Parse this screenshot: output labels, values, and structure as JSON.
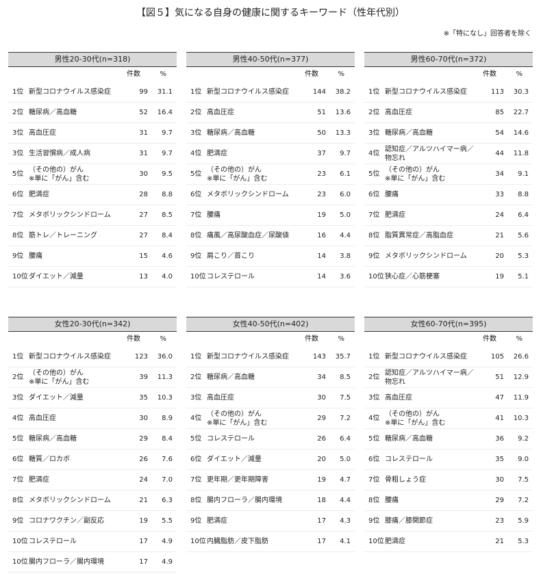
{
  "title": "【図５】気になる自身の健康に関するキーワード（性年代別）",
  "note": "※「特になし」回答者を除く",
  "tables": [
    {
      "header": "男性20-30代(n=318)",
      "columns": [
        "件数",
        "%"
      ],
      "rows": [
        {
          "rank": "1位",
          "name": [
            "新型コロナウイルス感染症"
          ],
          "count": "99",
          "pct": "31.1"
        },
        {
          "rank": "2位",
          "name": [
            "糖尿病／高血糖"
          ],
          "count": "52",
          "pct": "16.4"
        },
        {
          "rank": "3位",
          "name": [
            "高血圧症"
          ],
          "count": "31",
          "pct": "9.7"
        },
        {
          "rank": "3位",
          "name": [
            "生活習慣病／成人病"
          ],
          "count": "31",
          "pct": "9.7"
        },
        {
          "rank": "5位",
          "name": [
            "（その他の）がん",
            "※単に「がん」含む"
          ],
          "count": "30",
          "pct": "9.5"
        },
        {
          "rank": "6位",
          "name": [
            "肥満症"
          ],
          "count": "28",
          "pct": "8.8"
        },
        {
          "rank": "7位",
          "name": [
            "メタボリックシンドローム"
          ],
          "count": "27",
          "pct": "8.5"
        },
        {
          "rank": "8位",
          "name": [
            "筋トレ／トレーニング"
          ],
          "count": "27",
          "pct": "8.4"
        },
        {
          "rank": "9位",
          "name": [
            "腰痛"
          ],
          "count": "15",
          "pct": "4.6"
        },
        {
          "rank": "10位",
          "name": [
            "ダイエット／減量"
          ],
          "count": "13",
          "pct": "4.0"
        }
      ]
    },
    {
      "header": "男性40-50代(n=377)",
      "columns": [
        "件数",
        "%"
      ],
      "rows": [
        {
          "rank": "1位",
          "name": [
            "新型コロナウイルス感染症"
          ],
          "count": "144",
          "pct": "38.2"
        },
        {
          "rank": "2位",
          "name": [
            "高血圧症"
          ],
          "count": "51",
          "pct": "13.6"
        },
        {
          "rank": "3位",
          "name": [
            "糖尿病／高血糖"
          ],
          "count": "50",
          "pct": "13.3"
        },
        {
          "rank": "4位",
          "name": [
            "肥満症"
          ],
          "count": "37",
          "pct": "9.7"
        },
        {
          "rank": "5位",
          "name": [
            "（その他の）がん",
            "※単に「がん」含む"
          ],
          "count": "23",
          "pct": "6.1"
        },
        {
          "rank": "6位",
          "name": [
            "メタボリックシンドローム"
          ],
          "count": "23",
          "pct": "6.0"
        },
        {
          "rank": "7位",
          "name": [
            "腰痛"
          ],
          "count": "19",
          "pct": "5.0"
        },
        {
          "rank": "8位",
          "name": [
            "痛風／高尿酸血症／尿酸値"
          ],
          "count": "16",
          "pct": "4.4"
        },
        {
          "rank": "9位",
          "name": [
            "肩こり／首こり"
          ],
          "count": "14",
          "pct": "3.8"
        },
        {
          "rank": "10位",
          "name": [
            "コレステロール"
          ],
          "count": "14",
          "pct": "3.6"
        }
      ]
    },
    {
      "header": "男性60-70代(n=372)",
      "columns": [
        "件数",
        "%"
      ],
      "rows": [
        {
          "rank": "1位",
          "name": [
            "新型コロナウイルス感染症"
          ],
          "count": "113",
          "pct": "30.3"
        },
        {
          "rank": "2位",
          "name": [
            "高血圧症"
          ],
          "count": "85",
          "pct": "22.7"
        },
        {
          "rank": "3位",
          "name": [
            "糖尿病／高血糖"
          ],
          "count": "54",
          "pct": "14.6"
        },
        {
          "rank": "4位",
          "name": [
            "認知症／アルツハイマー病／",
            "物忘れ"
          ],
          "count": "44",
          "pct": "11.8"
        },
        {
          "rank": "5位",
          "name": [
            "（その他の）がん",
            "※単に「がん」含む"
          ],
          "count": "34",
          "pct": "9.1"
        },
        {
          "rank": "6位",
          "name": [
            "腰痛"
          ],
          "count": "33",
          "pct": "8.8"
        },
        {
          "rank": "7位",
          "name": [
            "肥満症"
          ],
          "count": "24",
          "pct": "6.4"
        },
        {
          "rank": "8位",
          "name": [
            "脂質異常症／高脂血症"
          ],
          "count": "21",
          "pct": "5.6"
        },
        {
          "rank": "9位",
          "name": [
            "メタボリックシンドローム"
          ],
          "count": "20",
          "pct": "5.3"
        },
        {
          "rank": "10位",
          "name": [
            "狭心症／心筋梗塞"
          ],
          "count": "19",
          "pct": "5.1"
        }
      ]
    },
    {
      "header": "女性20-30代(n=342)",
      "columns": [
        "件数",
        "%"
      ],
      "rows": [
        {
          "rank": "1位",
          "name": [
            "新型コロナウイルス感染症"
          ],
          "count": "123",
          "pct": "36.0"
        },
        {
          "rank": "2位",
          "name": [
            "（その他の）がん",
            "※単に「がん」含む"
          ],
          "count": "39",
          "pct": "11.3"
        },
        {
          "rank": "3位",
          "name": [
            "ダイエット／減量"
          ],
          "count": "35",
          "pct": "10.3"
        },
        {
          "rank": "4位",
          "name": [
            "高血圧症"
          ],
          "count": "30",
          "pct": "8.9"
        },
        {
          "rank": "5位",
          "name": [
            "糖尿病／高血糖"
          ],
          "count": "29",
          "pct": "8.4"
        },
        {
          "rank": "6位",
          "name": [
            "糖質／ロカボ"
          ],
          "count": "26",
          "pct": "7.6"
        },
        {
          "rank": "7位",
          "name": [
            "肥満症"
          ],
          "count": "24",
          "pct": "7.0"
        },
        {
          "rank": "8位",
          "name": [
            "メタボリックシンドローム"
          ],
          "count": "21",
          "pct": "6.3"
        },
        {
          "rank": "9位",
          "name": [
            "コロナワクチン／副反応"
          ],
          "count": "19",
          "pct": "5.5"
        },
        {
          "rank": "10位",
          "name": [
            "コレステロール"
          ],
          "count": "17",
          "pct": "4.9"
        },
        {
          "rank": "10位",
          "name": [
            "腸内フローラ／腸内環境"
          ],
          "count": "17",
          "pct": "4.9"
        }
      ]
    },
    {
      "header": "女性40-50代(n=402)",
      "columns": [
        "件数",
        "%"
      ],
      "rows": [
        {
          "rank": "1位",
          "name": [
            "新型コロナウイルス感染症"
          ],
          "count": "143",
          "pct": "35.7"
        },
        {
          "rank": "2位",
          "name": [
            "糖尿病／高血糖"
          ],
          "count": "34",
          "pct": "8.5"
        },
        {
          "rank": "3位",
          "name": [
            "高血圧症"
          ],
          "count": "30",
          "pct": "7.5"
        },
        {
          "rank": "4位",
          "name": [
            "（その他の）がん",
            "※単に「がん」含む"
          ],
          "count": "29",
          "pct": "7.2"
        },
        {
          "rank": "5位",
          "name": [
            "コレステロール"
          ],
          "count": "26",
          "pct": "6.4"
        },
        {
          "rank": "6位",
          "name": [
            "ダイエット／減量"
          ],
          "count": "20",
          "pct": "5.0"
        },
        {
          "rank": "7位",
          "name": [
            "更年期／更年期障害"
          ],
          "count": "19",
          "pct": "4.7"
        },
        {
          "rank": "8位",
          "name": [
            "腸内フローラ／腸内環境"
          ],
          "count": "18",
          "pct": "4.4"
        },
        {
          "rank": "9位",
          "name": [
            "肥満症"
          ],
          "count": "17",
          "pct": "4.3"
        },
        {
          "rank": "10位",
          "name": [
            "内臓脂肪／皮下脂肪"
          ],
          "count": "17",
          "pct": "4.1"
        }
      ]
    },
    {
      "header": "女性60-70代(n=395)",
      "columns": [
        "件数",
        "%"
      ],
      "rows": [
        {
          "rank": "1位",
          "name": [
            "新型コロナウイルス感染症"
          ],
          "count": "105",
          "pct": "26.6"
        },
        {
          "rank": "2位",
          "name": [
            "認知症／アルツハイマー病／",
            "物忘れ"
          ],
          "count": "51",
          "pct": "12.9"
        },
        {
          "rank": "3位",
          "name": [
            "高血圧症"
          ],
          "count": "47",
          "pct": "11.9"
        },
        {
          "rank": "4位",
          "name": [
            "（その他の）がん",
            "※単に「がん」含む"
          ],
          "count": "41",
          "pct": "10.3"
        },
        {
          "rank": "5位",
          "name": [
            "糖尿病／高血糖"
          ],
          "count": "36",
          "pct": "9.2"
        },
        {
          "rank": "6位",
          "name": [
            "コレステロール"
          ],
          "count": "35",
          "pct": "9.0"
        },
        {
          "rank": "7位",
          "name": [
            "骨粗しょう症"
          ],
          "count": "30",
          "pct": "7.5"
        },
        {
          "rank": "8位",
          "name": [
            "腰痛"
          ],
          "count": "29",
          "pct": "7.2"
        },
        {
          "rank": "9位",
          "name": [
            "膝痛／膝関節症"
          ],
          "count": "23",
          "pct": "5.9"
        },
        {
          "rank": "10位",
          "name": [
            "肥満症"
          ],
          "count": "21",
          "pct": "5.3"
        }
      ]
    }
  ]
}
